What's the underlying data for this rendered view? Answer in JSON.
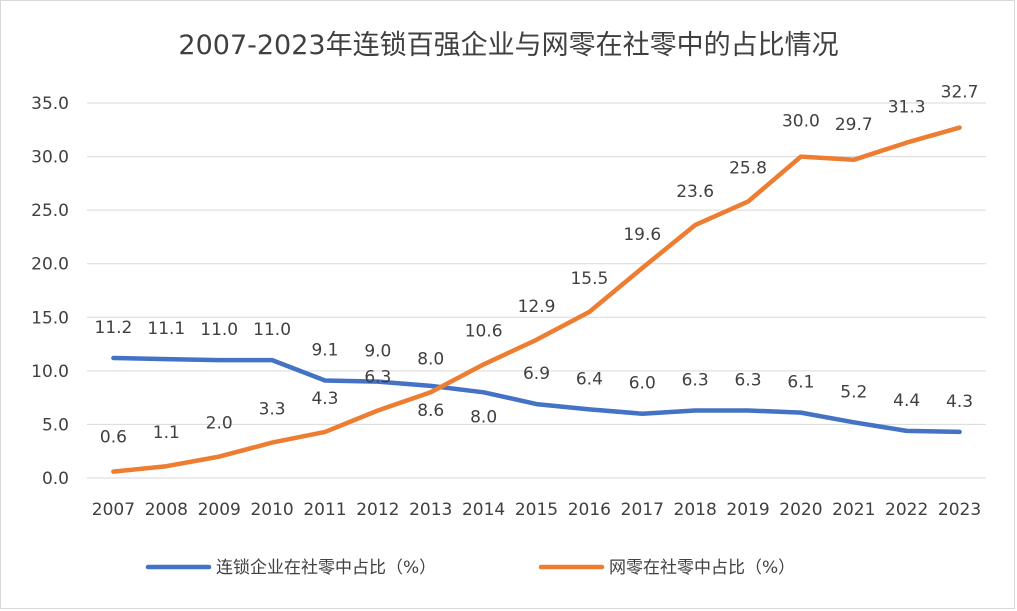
{
  "chart_data": {
    "type": "line",
    "title": "2007-2023年连锁百强企业与网零在社零中的占比情况",
    "categories": [
      "2007",
      "2008",
      "2009",
      "2010",
      "2011",
      "2012",
      "2013",
      "2014",
      "2015",
      "2016",
      "2017",
      "2018",
      "2019",
      "2020",
      "2021",
      "2022",
      "2023"
    ],
    "ylim": [
      0,
      35
    ],
    "y_ticks": [
      "0.0",
      "5.0",
      "10.0",
      "15.0",
      "20.0",
      "25.0",
      "30.0",
      "35.0"
    ],
    "grid": true,
    "legend_position": "bottom",
    "series": [
      {
        "name": "连锁企业在社零中占比（%）",
        "color": "#4472C4",
        "values": [
          11.2,
          11.1,
          11.0,
          11.0,
          9.1,
          9.0,
          8.6,
          8.0,
          6.9,
          6.4,
          6.0,
          6.3,
          6.3,
          6.1,
          5.2,
          4.4,
          4.3
        ],
        "labels": [
          "11.2",
          "11.1",
          "11.0",
          "11.0",
          "9.1",
          "9.0",
          "8.6",
          "8.0",
          "6.9",
          "6.4",
          "6.0",
          "6.3",
          "6.3",
          "6.1",
          "5.2",
          "4.4",
          "4.3"
        ]
      },
      {
        "name": "网零在社零中占比（%）",
        "color": "#ED7D31",
        "values": [
          0.6,
          1.1,
          2.0,
          3.3,
          4.3,
          6.3,
          8.0,
          10.6,
          12.9,
          15.5,
          19.6,
          23.6,
          25.8,
          30.0,
          29.7,
          31.3,
          32.7
        ],
        "labels": [
          "0.6",
          "1.1",
          "2.0",
          "3.3",
          "4.3",
          "6.3",
          "8.0",
          "10.6",
          "12.9",
          "15.5",
          "19.6",
          "23.6",
          "25.8",
          "30.0",
          "29.7",
          "31.3",
          "32.7"
        ]
      }
    ],
    "grid_color": "#d9d9d9"
  }
}
